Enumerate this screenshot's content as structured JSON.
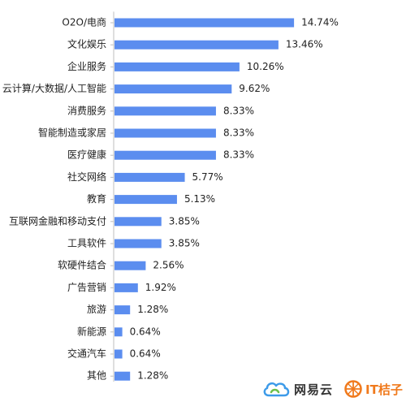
{
  "chart_data": {
    "type": "bar",
    "orientation": "horizontal",
    "categories": [
      "O2O/电商",
      "文化娱乐",
      "企业服务",
      "云计算/大数据/人工智能",
      "消费服务",
      "智能制造或家居",
      "医疗健康",
      "社交网络",
      "教育",
      "互联网金融和移动支付",
      "工具软件",
      "软硬件结合",
      "广告营销",
      "旅游",
      "新能源",
      "交通汽车",
      "其他"
    ],
    "values": [
      14.74,
      13.46,
      10.26,
      9.62,
      8.33,
      8.33,
      8.33,
      5.77,
      5.13,
      3.85,
      3.85,
      2.56,
      1.92,
      1.28,
      0.64,
      0.64,
      1.28
    ],
    "value_labels": [
      "14.74%",
      "13.46%",
      "10.26%",
      "9.62%",
      "8.33%",
      "8.33%",
      "8.33%",
      "5.77%",
      "5.13%",
      "3.85%",
      "3.85%",
      "2.56%",
      "1.92%",
      "1.28%",
      "0.64%",
      "0.64%",
      "1.28%"
    ],
    "xlim": [
      0,
      16
    ],
    "bar_color": "#5b8def",
    "grid": false
  },
  "logos": {
    "netease": {
      "text": "网易云",
      "color": "#3d9be9"
    },
    "itjuzi": {
      "text": "IT桔子",
      "color": "#f07a1d"
    }
  }
}
